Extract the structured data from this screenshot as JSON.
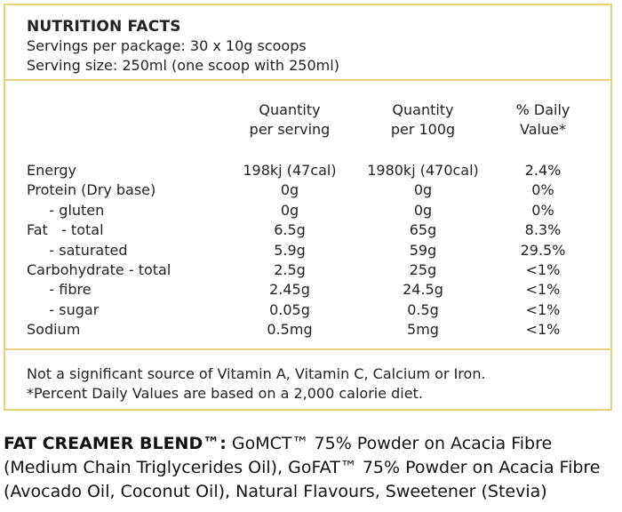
{
  "header": {
    "title": "NUTRITION FACTS",
    "servings_per_package": "Servings per package: 30 x 10g scoops",
    "serving_size": "Serving size: 250ml (one scoop with 250ml)"
  },
  "table": {
    "columns": [
      {
        "line1": "Quantity",
        "line2": "per serving"
      },
      {
        "line1": "Quantity",
        "line2": "per 100g"
      },
      {
        "line1": "% Daily",
        "line2": "Value*"
      }
    ],
    "rows": [
      {
        "name": "Energy",
        "per_serving": "198kj (47cal)",
        "per_100g": "1980kj (470cal)",
        "daily": "2.4%"
      },
      {
        "name": "Protein (Dry base)",
        "per_serving": "0g",
        "per_100g": "0g",
        "daily": "0%"
      },
      {
        "name": "     - gluten",
        "per_serving": "0g",
        "per_100g": "0g",
        "daily": "0%"
      },
      {
        "name": "Fat   - total",
        "per_serving": "6.5g",
        "per_100g": "65g",
        "daily": "8.3%"
      },
      {
        "name": "     - saturated",
        "per_serving": "5.9g",
        "per_100g": "59g",
        "daily": "29.5%"
      },
      {
        "name": "Carbohydrate - total",
        "per_serving": "2.5g",
        "per_100g": "25g",
        "daily": "<1%"
      },
      {
        "name": "     - fibre",
        "per_serving": "2.45g",
        "per_100g": "24.5g",
        "daily": "<1%"
      },
      {
        "name": "     - sugar",
        "per_serving": "0.05g",
        "per_100g": "0.5g",
        "daily": "<1%"
      },
      {
        "name": "Sodium",
        "per_serving": "0.5mg",
        "per_100g": "5mg",
        "daily": "<1%"
      }
    ]
  },
  "footer": {
    "note1": "Not a significant source of Vitamin A, Vitamin C, Calcium or Iron.",
    "note2": "*Percent Daily Values are based on a 2,000 calorie diet."
  },
  "ingredients": {
    "label": "FAT CREAMER BLEND™:",
    "text": " GoMCT™ 75% Powder on Acacia Fibre (Medium Chain Triglycerides Oil), GoFAT™ 75% Powder on Acacia Fibre (Avocado Oil, Coconut Oil), Natural Flavours, Sweetener (Stevia)"
  },
  "colors": {
    "border": "#e6d17c",
    "text": "#222222"
  }
}
